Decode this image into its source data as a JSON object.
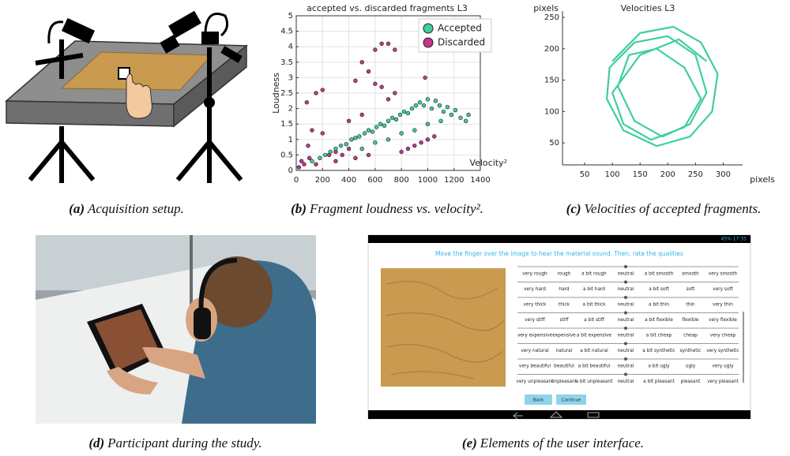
{
  "captions": [
    {
      "label": "(a)",
      "text": "Acquisition setup."
    },
    {
      "label": "(b)",
      "text": "Fragment loudness vs. velocity²."
    },
    {
      "label": "(c)",
      "text": "Velocities of accepted fragments."
    },
    {
      "label": "(d)",
      "text": "Participant during the study."
    },
    {
      "label": "(e)",
      "text": "Elements of the user interface."
    }
  ],
  "chart_data": [
    {
      "type": "scatter",
      "title": "accepted vs. discarded fragments L3",
      "x_label": "Velocity²",
      "y_label": "Loudness",
      "xlim": [
        0,
        1400
      ],
      "xticks": [
        0,
        200,
        400,
        600,
        800,
        1000,
        1200,
        1400
      ],
      "ylim": [
        0,
        5
      ],
      "yticks": [
        0,
        0.5,
        1,
        1.5,
        2,
        2.5,
        3,
        3.5,
        4,
        4.5,
        5
      ],
      "grid": true,
      "legend": "upper right",
      "series": [
        {
          "name": "Accepted",
          "color": "#3ecf9b",
          "x": [
            120,
            180,
            220,
            260,
            300,
            340,
            380,
            420,
            450,
            480,
            520,
            550,
            580,
            610,
            640,
            670,
            700,
            730,
            760,
            790,
            820,
            850,
            880,
            910,
            940,
            970,
            1000,
            1030,
            1060,
            1090,
            1120,
            1150,
            1180,
            1210,
            1250,
            1290,
            1310,
            500,
            600,
            700,
            800,
            900,
            1000,
            1100
          ],
          "values": [
            0.3,
            0.4,
            0.5,
            0.6,
            0.7,
            0.8,
            0.85,
            1.0,
            1.05,
            1.1,
            1.2,
            1.3,
            1.25,
            1.4,
            1.5,
            1.45,
            1.6,
            1.7,
            1.65,
            1.8,
            1.9,
            1.85,
            2.0,
            2.1,
            2.2,
            2.1,
            2.3,
            2.0,
            2.25,
            2.1,
            1.9,
            2.05,
            1.8,
            1.95,
            1.7,
            1.6,
            1.8,
            0.7,
            0.9,
            1.0,
            1.2,
            1.3,
            1.5,
            1.6
          ]
        },
        {
          "name": "Discarded",
          "color": "#c2378c",
          "x": [
            20,
            40,
            60,
            90,
            120,
            150,
            200,
            250,
            300,
            350,
            400,
            450,
            500,
            550,
            600,
            650,
            700,
            750,
            800,
            850,
            900,
            950,
            1000,
            150,
            300,
            450,
            550,
            600,
            650,
            700,
            500,
            400,
            750,
            200,
            100,
            80,
            980,
            1050
          ],
          "values": [
            0.1,
            0.3,
            0.2,
            0.8,
            1.3,
            2.5,
            2.6,
            0.5,
            0.6,
            0.5,
            0.7,
            2.9,
            3.5,
            3.2,
            3.9,
            4.1,
            4.1,
            3.9,
            0.6,
            0.7,
            0.8,
            0.9,
            1.0,
            0.2,
            0.3,
            0.4,
            0.5,
            2.8,
            2.7,
            2.3,
            1.8,
            1.6,
            2.5,
            1.2,
            0.4,
            2.2,
            3.0,
            1.1
          ]
        }
      ]
    },
    {
      "type": "line",
      "title": "Velocities L3",
      "x_label": "pixels",
      "y_label": "pixels",
      "xlim": [
        10,
        335
      ],
      "xticks": [
        50,
        100,
        150,
        200,
        250,
        300
      ],
      "ylim": [
        15,
        255
      ],
      "yticks": [
        50,
        100,
        150,
        200,
        250
      ],
      "grid": false,
      "series": [
        {
          "color": "#3ecf9b",
          "x": [
            100,
            150,
            210,
            260,
            290,
            280,
            240,
            180,
            120,
            90,
            95,
            140,
            200,
            250,
            270,
            240,
            190,
            140,
            110,
            130,
            180,
            230,
            260,
            230,
            170,
            120,
            100,
            150,
            220,
            270
          ],
          "values": [
            180,
            225,
            235,
            210,
            160,
            100,
            60,
            45,
            70,
            120,
            170,
            210,
            220,
            190,
            130,
            80,
            60,
            85,
            140,
            190,
            200,
            170,
            120,
            75,
            55,
            80,
            130,
            190,
            215,
            180
          ]
        }
      ]
    }
  ],
  "ui": {
    "status": "45% 17:35",
    "instruction": "Move the finger over the image to hear the material sound. Then, rate the qualities",
    "rows": [
      [
        "very rough",
        "rough",
        "a bit rough",
        "neutral",
        "a bit smooth",
        "smooth",
        "very smooth"
      ],
      [
        "very hard",
        "hard",
        "a bit hard",
        "neutral",
        "a bit soft",
        "soft",
        "very soft"
      ],
      [
        "very thick",
        "thick",
        "a bit thick",
        "neutral",
        "a bit thin",
        "thin",
        "very thin"
      ],
      [
        "very stiff",
        "stiff",
        "a bit stiff",
        "neutral",
        "a bit flexible",
        "flexible",
        "very flexible"
      ],
      [
        "very expensive",
        "expensive",
        "a bit expensive",
        "neutral",
        "a bit cheap",
        "cheap",
        "very cheap"
      ],
      [
        "very natural",
        "natural",
        "a bit natural",
        "neutral",
        "a bit synthetic",
        "synthetic",
        "very synthetic"
      ],
      [
        "very beautiful",
        "beautiful",
        "a bit beautiful",
        "neutral",
        "a bit ugly",
        "ugly",
        "very ugly"
      ],
      [
        "very unpleasant",
        "unpleasant",
        "a bit unpleasant",
        "neutral",
        "a bit pleasant",
        "pleasant",
        "very pleasant"
      ]
    ],
    "buttons": [
      "Back",
      "Continue"
    ]
  }
}
